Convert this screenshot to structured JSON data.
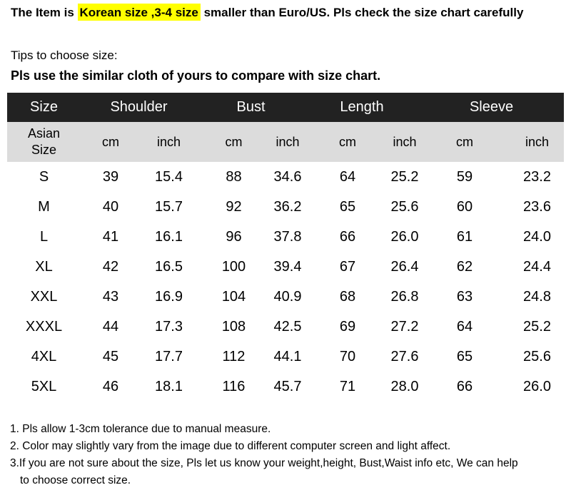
{
  "headline": {
    "prefix": "The Item is ",
    "highlight": "Korean size ,3-4 size",
    "suffix": " smaller than Euro/US. Pls check the size chart carefully"
  },
  "tips": {
    "line1": "Tips to choose size:",
    "line2": "Pls use the similar cloth of yours to compare with size chart."
  },
  "table": {
    "headers": [
      "Size",
      "Shoulder",
      "Bust",
      "Length",
      "Sleeve"
    ],
    "size_sub_line1": "Asian",
    "size_sub_line2": "Size",
    "unit_cm": "cm",
    "unit_inch": "inch",
    "rows": [
      [
        "S",
        "39",
        "15.4",
        "88",
        "34.6",
        "64",
        "25.2",
        "59",
        "23.2"
      ],
      [
        "M",
        "40",
        "15.7",
        "92",
        "36.2",
        "65",
        "25.6",
        "60",
        "23.6"
      ],
      [
        "L",
        "41",
        "16.1",
        "96",
        "37.8",
        "66",
        "26.0",
        "61",
        "24.0"
      ],
      [
        "XL",
        "42",
        "16.5",
        "100",
        "39.4",
        "67",
        "26.4",
        "62",
        "24.4"
      ],
      [
        "XXL",
        "43",
        "16.9",
        "104",
        "40.9",
        "68",
        "26.8",
        "63",
        "24.8"
      ],
      [
        "XXXL",
        "44",
        "17.3",
        "108",
        "42.5",
        "69",
        "27.2",
        "64",
        "25.2"
      ],
      [
        "4XL",
        "45",
        "17.7",
        "112",
        "44.1",
        "70",
        "27.6",
        "65",
        "25.6"
      ],
      [
        "5XL",
        "46",
        "18.1",
        "116",
        "45.7",
        "71",
        "28.0",
        "66",
        "26.0"
      ]
    ]
  },
  "notes": {
    "n1": "1. Pls allow 1-3cm tolerance due to manual measure.",
    "n2": "2. Color may slightly vary from the image due to different computer screen and light affect.",
    "n3a": "3.If you are not sure about the size, Pls let us know your weight,height, Bust,Waist info etc, We can help",
    "n3b": "to choose correct size."
  },
  "colors": {
    "highlight": "#ffff00",
    "header_bg": "#222222",
    "subheader_bg": "#dcdcdc"
  }
}
